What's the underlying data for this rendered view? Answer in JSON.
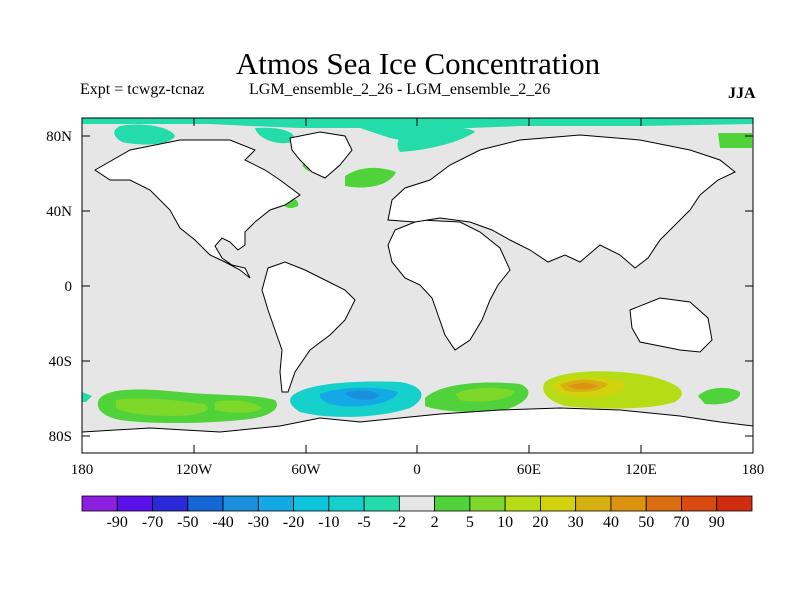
{
  "title": "Atmos Sea Ice Concentration",
  "experiment": "Expt = tcwgz-tcnaz",
  "comparison": "LGM_ensemble_2_26 - LGM_ensemble_2_26",
  "season": "JJA",
  "lat_labels": [
    "80N",
    "40N",
    "0",
    "40S",
    "80S"
  ],
  "lon_labels": [
    "180",
    "120W",
    "60W",
    "0",
    "60E",
    "120E",
    "180"
  ],
  "colorbar": {
    "labels": [
      "-90",
      "-70",
      "-50",
      "-40",
      "-30",
      "-20",
      "-10",
      "-5",
      "-2",
      "2",
      "5",
      "10",
      "20",
      "30",
      "40",
      "50",
      "70",
      "90"
    ],
    "colors": [
      "#8c1fe0",
      "#5a10e8",
      "#2a2ad8",
      "#1566d6",
      "#1a90dc",
      "#13a8e6",
      "#0cc4dc",
      "#16d0cc",
      "#23dcaa",
      "#e6e6e6",
      "#4fd23a",
      "#7ed82a",
      "#b6dc16",
      "#d2d20e",
      "#d6b010",
      "#dc9410",
      "#dc6e12",
      "#d84a10",
      "#d02c10"
    ]
  },
  "land_color": "#ffffff",
  "ocean_color": "#e6e6e6"
}
